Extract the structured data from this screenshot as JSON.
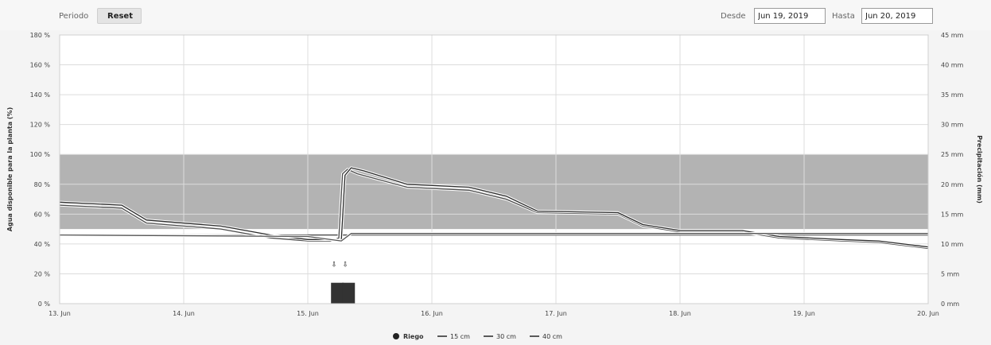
{
  "toolbar": {
    "period_label": "Periodo",
    "reset_label": "Reset",
    "from_label": "Desde",
    "from_value": "Jun 19, 2019",
    "to_label": "Hasta",
    "to_value": "Jun 20, 2019"
  },
  "chart_data": {
    "type": "line",
    "title": "",
    "ylabel_left": "Agua disponible para la planta (%)",
    "ylabel_right": "Precipitación (mm)",
    "x_range": [
      13,
      20
    ],
    "x_ticks": [
      {
        "x": 13,
        "label": "13. Jun"
      },
      {
        "x": 14,
        "label": "14. Jun"
      },
      {
        "x": 15,
        "label": "15. Jun"
      },
      {
        "x": 16,
        "label": "16. Jun"
      },
      {
        "x": 17,
        "label": "17. Jun"
      },
      {
        "x": 18,
        "label": "18. Jun"
      },
      {
        "x": 19,
        "label": "19. Jun"
      },
      {
        "x": 20,
        "label": "20. Jun"
      }
    ],
    "ylim_left": [
      0,
      180
    ],
    "y_ticks_left": [
      "0 %",
      "20 %",
      "40 %",
      "60 %",
      "80 %",
      "100 %",
      "120 %",
      "140 %",
      "160 %",
      "180 %"
    ],
    "ylim_right": [
      0,
      45
    ],
    "y_ticks_right": [
      "0 mm",
      "5 mm",
      "10 mm",
      "15 mm",
      "20 mm",
      "25 mm",
      "30 mm",
      "35 mm",
      "40 mm",
      "45 mm"
    ],
    "optimal_band": [
      50,
      100
    ],
    "reference_line": 46,
    "grid": true,
    "legend_position": "bottom",
    "series": [
      {
        "name": "15 cm",
        "color": "#4a4a4a",
        "x": [
          13,
          13.5,
          13.7,
          14.3,
          14.7,
          15,
          15.18,
          15.25,
          15.28,
          15.32,
          15.4,
          15.8,
          16.3,
          16.6,
          16.85,
          17.5,
          17.7,
          18,
          18.5,
          18.8,
          19.3,
          19.6,
          19.9,
          20
        ],
        "y": [
          66,
          64,
          54,
          50,
          44,
          42,
          42,
          44,
          87,
          90,
          87,
          78,
          76,
          70,
          61,
          60,
          52,
          48,
          48,
          44,
          42,
          41,
          38,
          37
        ]
      },
      {
        "name": "30 cm",
        "color": "#2a2a2a",
        "x": [
          13,
          13.5,
          13.7,
          14.3,
          14.7,
          15,
          15.22,
          15.27,
          15.3,
          15.35,
          15.45,
          15.8,
          16.3,
          16.6,
          16.85,
          17.5,
          17.7,
          18,
          18.5,
          18.8,
          19.3,
          19.6,
          19.9,
          20
        ],
        "y": [
          68,
          66,
          56,
          52,
          46,
          43,
          43,
          42,
          86,
          91,
          89,
          80,
          78,
          72,
          62,
          61,
          53,
          49,
          49,
          45,
          43,
          42,
          39,
          38
        ]
      },
      {
        "name": "40 cm",
        "color": "#555555",
        "x": [
          13,
          15,
          15.27,
          15.35,
          20
        ],
        "y": [
          46,
          45,
          42,
          47,
          47
        ]
      }
    ],
    "events": [
      {
        "name": "Riego",
        "x": [
          15.2,
          15.29
        ],
        "y_mm": [
          3.5,
          3.5
        ]
      }
    ],
    "legend": [
      "Riego",
      "15 cm",
      "30 cm",
      "40 cm"
    ]
  }
}
